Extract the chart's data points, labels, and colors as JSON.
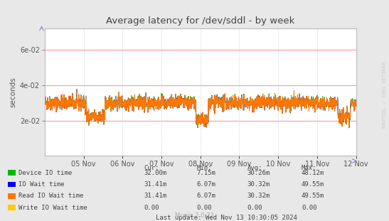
{
  "title": "Average latency for /dev/sddl - by week",
  "ylabel": "seconds",
  "watermark": "RRDTOOL / TOBI OETIKER",
  "munin_version": "Munin 2.0.73",
  "last_update": "Last update: Wed Nov 13 10:30:05 2024",
  "bg_color": "#e8e8e8",
  "plot_bg_color": "#ffffff",
  "grid_color": "#d0d0d0",
  "red_line_color": "#ff9999",
  "x_tick_labels": [
    "05 Nov",
    "06 Nov",
    "07 Nov",
    "08 Nov",
    "09 Nov",
    "10 Nov",
    "11 Nov",
    "12 Nov"
  ],
  "y_ticks": [
    0.02,
    0.04,
    0.06
  ],
  "ylim": [
    0.0,
    0.072
  ],
  "series": {
    "device_io": {
      "label": "Device IO time",
      "color": "#00bb00",
      "cur": "32.00m",
      "min": "7.15m",
      "avg": "30.26m",
      "max": "48.12m"
    },
    "io_wait": {
      "label": "IO Wait time",
      "color": "#0000ff",
      "cur": "31.41m",
      "min": "6.07m",
      "avg": "30.32m",
      "max": "49.55m"
    },
    "read_io": {
      "label": "Read IO Wait time",
      "color": "#ff7700",
      "cur": "31.41m",
      "min": "6.07m",
      "avg": "30.32m",
      "max": "49.55m"
    },
    "write_io": {
      "label": "Write IO Wait time",
      "color": "#ffcc00",
      "cur": "0.00",
      "min": "0.00",
      "avg": "0.00",
      "max": "0.00"
    }
  }
}
